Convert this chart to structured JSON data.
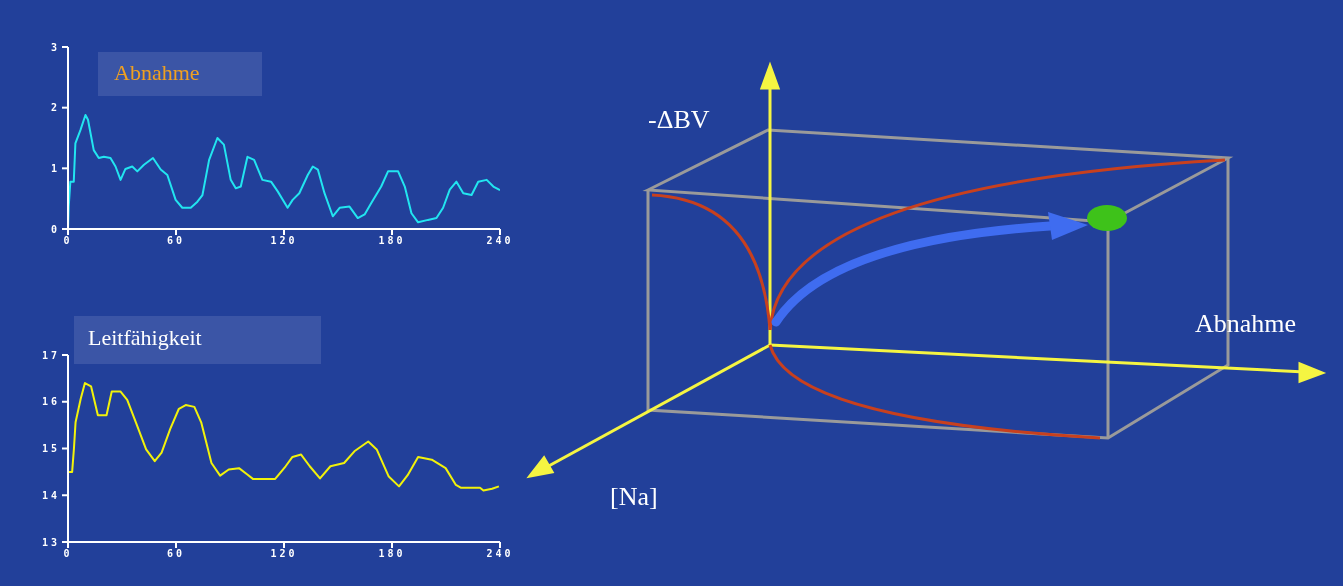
{
  "chart_data": [
    {
      "type": "line",
      "title": "Abnahme",
      "xlim": [
        0,
        240
      ],
      "xticks": [
        0,
        60,
        120,
        180,
        240
      ],
      "ylim": [
        0,
        3
      ],
      "yticks": [
        0,
        1,
        2,
        3
      ],
      "series": [
        {
          "color": "#22e5f0",
          "x": [
            0,
            0.4,
            1.3,
            3.2,
            4.1,
            6.9,
            9.7,
            11.1,
            14.3,
            17.1,
            19.9,
            23.6,
            26.4,
            29.2,
            31.9,
            35.7,
            38.5,
            42.2,
            47.2,
            51.5,
            55.2,
            59.8,
            63.5,
            68.2,
            71.9,
            74.7,
            78.4,
            83,
            86.6,
            90.4,
            93.2,
            96,
            99.7,
            103.4,
            108,
            112.8,
            116.5,
            122,
            124.8,
            128.5,
            133.2,
            136,
            138.8,
            142.5,
            147.1,
            150.9,
            156.4,
            161,
            164.8,
            168.5,
            174,
            177.8,
            183.4,
            187.1,
            190.8,
            194.5,
            200,
            204.7,
            208.4,
            212.1,
            215.8,
            219.6,
            224.2,
            227.9,
            232.6,
            236.3,
            240
          ],
          "values": [
            0,
            0.37,
            0.78,
            0.78,
            1.41,
            1.63,
            1.88,
            1.8,
            1.3,
            1.17,
            1.19,
            1.17,
            1.03,
            0.81,
            0.99,
            1.03,
            0.95,
            1.06,
            1.17,
            0.98,
            0.89,
            0.48,
            0.35,
            0.35,
            0.45,
            0.56,
            1.14,
            1.5,
            1.39,
            0.81,
            0.67,
            0.7,
            1.19,
            1.14,
            0.81,
            0.78,
            0.62,
            0.35,
            0.48,
            0.59,
            0.89,
            1.03,
            0.98,
            0.59,
            0.21,
            0.35,
            0.37,
            0.18,
            0.24,
            0.43,
            0.7,
            0.95,
            0.95,
            0.7,
            0.26,
            0.11,
            0.15,
            0.18,
            0.35,
            0.65,
            0.78,
            0.59,
            0.56,
            0.78,
            0.81,
            0.7,
            0.64
          ]
        }
      ]
    },
    {
      "type": "line",
      "title": "Leitfähigkeit",
      "xlim": [
        0,
        240
      ],
      "xticks": [
        0,
        60,
        120,
        180,
        240
      ],
      "ylim": [
        13,
        17
      ],
      "yticks": [
        13,
        14,
        15,
        16,
        17
      ],
      "series": [
        {
          "color": "#f2f20a",
          "x": [
            0.4,
            2.3,
            3.3,
            4.2,
            7.1,
            9.4,
            12.8,
            16.6,
            21.4,
            24.3,
            29.1,
            32.9,
            37.7,
            43.4,
            48.2,
            52,
            56.8,
            61.6,
            65.4,
            70.2,
            74,
            79.7,
            84.5,
            89.3,
            95,
            99.8,
            102.7,
            115.1,
            120.9,
            124.7,
            129.5,
            134.3,
            140,
            145.8,
            153.4,
            159.1,
            166.8,
            171.5,
            178.2,
            183.9,
            188.7,
            194.5,
            202.1,
            209.8,
            215.5,
            218.4,
            228.9,
            230.8,
            235.6,
            239.4
          ],
          "values": [
            14.5,
            14.5,
            15,
            15.56,
            16.07,
            16.4,
            16.33,
            15.71,
            15.71,
            16.22,
            16.22,
            16.04,
            15.56,
            14.98,
            14.73,
            14.91,
            15.42,
            15.85,
            15.93,
            15.89,
            15.56,
            14.69,
            14.42,
            14.55,
            14.58,
            14.44,
            14.35,
            14.35,
            14.62,
            14.82,
            14.87,
            14.62,
            14.36,
            14.62,
            14.69,
            14.94,
            15.15,
            14.98,
            14.4,
            14.19,
            14.43,
            14.82,
            14.76,
            14.58,
            14.22,
            14.16,
            14.16,
            14.1,
            14.14,
            14.19
          ]
        }
      ]
    },
    {
      "type": "other",
      "ylabel": "-ΔBV",
      "xlabel": "Abnahme",
      "annotations": [
        "[Na]"
      ]
    }
  ]
}
